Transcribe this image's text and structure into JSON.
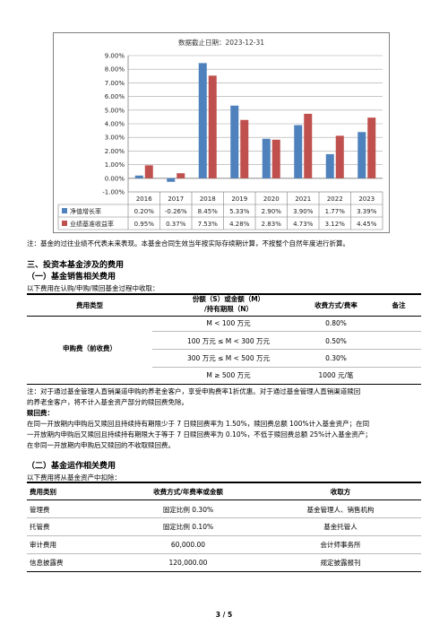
{
  "chart_data": {
    "type": "bar",
    "title": "数据截止日期：2023-12-31",
    "categories": [
      "2016",
      "2017",
      "2018",
      "2019",
      "2020",
      "2021",
      "2022",
      "2023"
    ],
    "ylim": [
      -0.01,
      0.08
    ],
    "yticks": [
      "-1.00%",
      "0.00%",
      "1.00%",
      "2.00%",
      "3.00%",
      "4.00%",
      "5.00%",
      "6.00%",
      "7.00%",
      "8.00%",
      "9.00%"
    ],
    "grid": true,
    "series": [
      {
        "name": "净值增长率",
        "color": "#4f81bd",
        "values": [
          0.2,
          -0.26,
          8.45,
          5.33,
          2.9,
          3.9,
          1.77,
          3.39
        ],
        "labels": [
          "0.20%",
          "-0.26%",
          "8.45%",
          "5.33%",
          "2.90%",
          "3.90%",
          "1.77%",
          "3.39%"
        ]
      },
      {
        "name": "业绩基准收益率",
        "color": "#c0504d",
        "values": [
          0.95,
          0.37,
          7.53,
          4.28,
          2.83,
          4.73,
          3.12,
          4.45
        ],
        "labels": [
          "0.95%",
          "0.37%",
          "7.53%",
          "4.28%",
          "2.83%",
          "4.73%",
          "3.12%",
          "4.45%"
        ]
      }
    ]
  },
  "note1": "注：基金的过往业绩不代表未来表现。本基金合同生效当年按实际存续期计算，不按整个自然年度进行折算。",
  "section3": "三、投资本基金涉及的费用",
  "sub1": "（一）基金销售相关费用",
  "sub1_intro": "以下费用在认购/申购/赎回基金过程中收取：",
  "sales_table": {
    "h_type": "费用类型",
    "h_amount_1": "份额（S）或金额（M）",
    "h_amount_2": "/持有期限（N）",
    "h_rate": "收费方式/费率",
    "h_note": "备注",
    "fee_name": "申购费（前收费）",
    "rows": [
      {
        "amount": "M < 100 万元",
        "rate": "0.80%"
      },
      {
        "amount": "100 万元 ≤ M < 300 万元",
        "rate": "0.50%"
      },
      {
        "amount": "300 万元 ≤ M < 500 万元",
        "rate": "0.30%"
      },
      {
        "amount": "M ≥ 500 万元",
        "rate": "1000 元/笔"
      }
    ]
  },
  "note2_l1": "注：对于通过基金管理人直销渠道申购的养老金客户，享受申购费率1折优惠。对于通过基金管理人直销渠道赎回",
  "note2_l2": "的养老金客户，将不计入基金资产部分的赎回费免除。",
  "redeem_title": "赎回费：",
  "redeem_l1": "在同一开放期内申购后又赎回且持续持有期限少于 7 日赎回费率为 1.50%，赎回费总额 100%计入基金资产；在同",
  "redeem_l2": "一开放期内申购后又赎回且持续持有期限大于等于 7 日赎回费率为 0.10%，不低于赎回费总额 25%计入基金资产；",
  "redeem_l3": "在非同一开放期内申购后又赎回的不收取赎回费。",
  "sub2": "（二）基金运作相关费用",
  "sub2_intro": "以下费用将从基金资产中扣除：",
  "ops_table": {
    "h_type": "费用类别",
    "h_rate": "收费方式/年费率或金额",
    "h_recv": "收取方",
    "rows": [
      {
        "type": "管理费",
        "rate": "固定比例 0.30%",
        "recv": "基金管理人、销售机构"
      },
      {
        "type": "托管费",
        "rate": "固定比例 0.10%",
        "recv": "基金托管人"
      },
      {
        "type": "审计费用",
        "rate": "60,000.00",
        "recv": "会计师事务所"
      },
      {
        "type": "信息披露费",
        "rate": "120,000.00",
        "recv": "规定披露报刊"
      }
    ]
  },
  "page_num": "3 / 5"
}
